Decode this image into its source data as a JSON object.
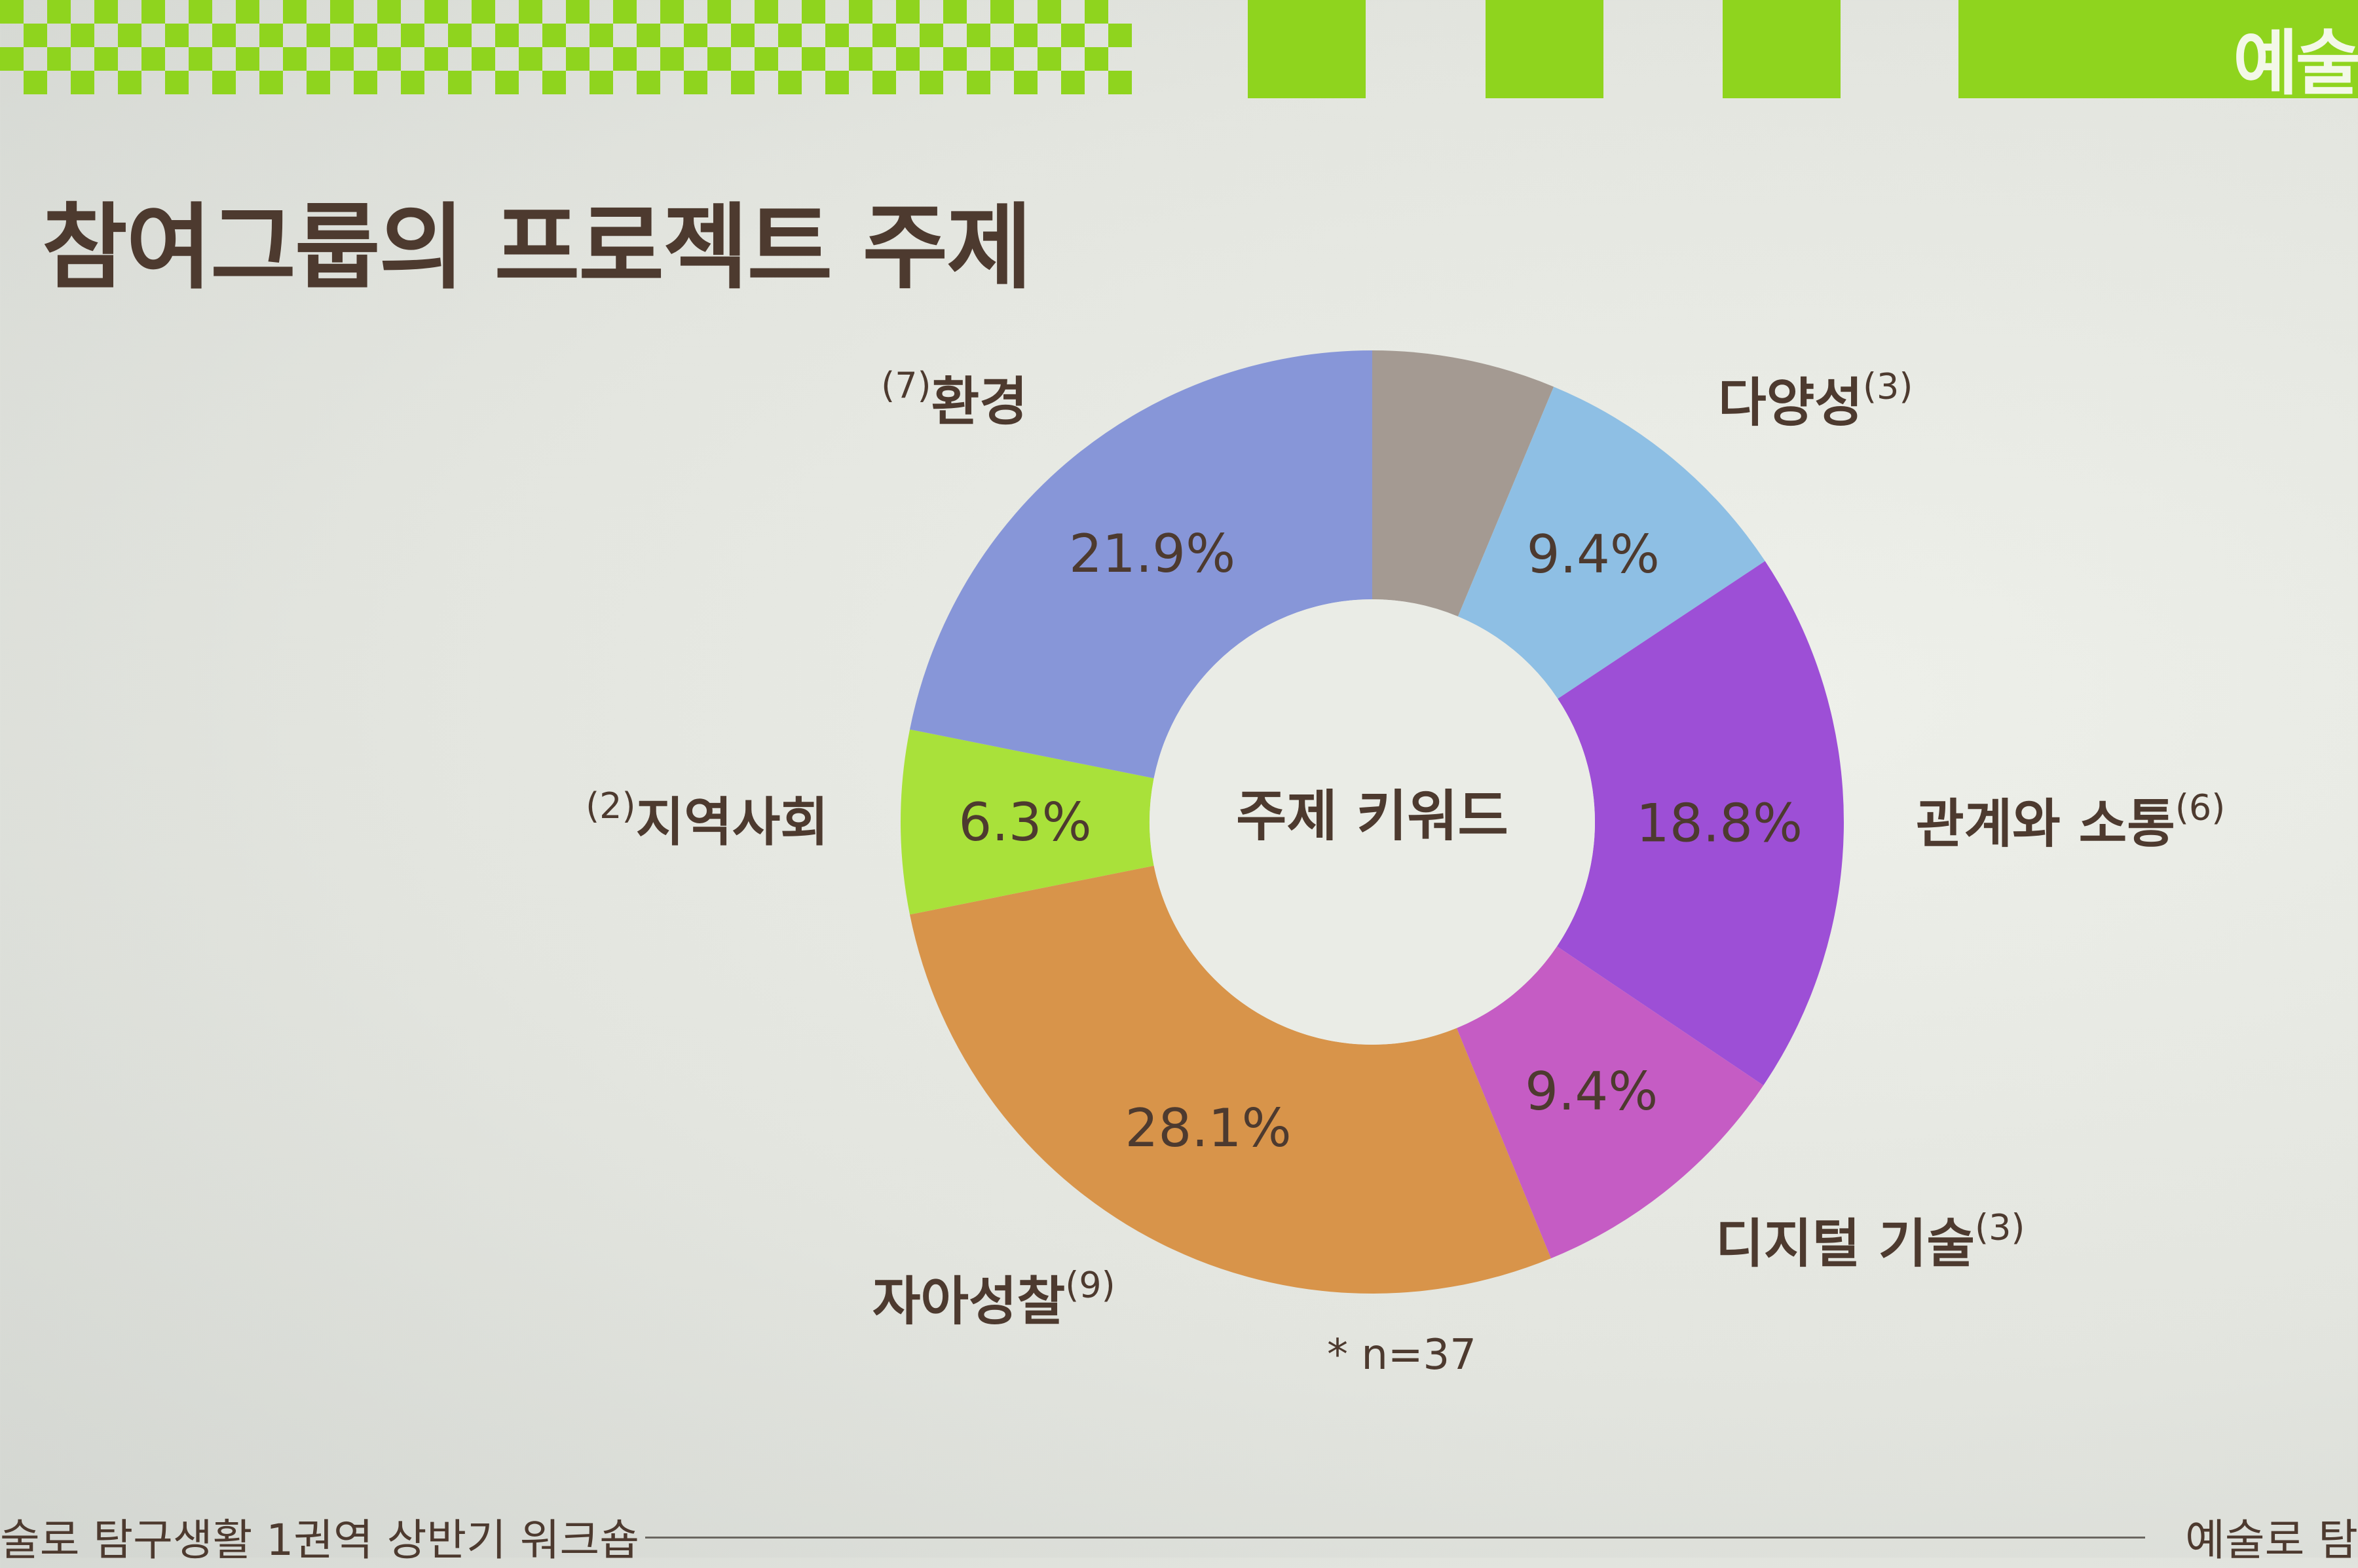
{
  "slide": {
    "title": "참여그룹의 프로젝트 주제",
    "corner_label": "예술",
    "footer_left": "술로 탐구생활 1권역 상반기 워크숍",
    "footer_right": "예술로 탐"
  },
  "colors": {
    "header_green": "#8fd41e",
    "title_brown": "#4d3a2f"
  },
  "chart_data": {
    "type": "pie",
    "donut": true,
    "center_label": "주제 키워드",
    "note": "* n=37",
    "slices": [
      {
        "label": "",
        "count": "",
        "value": 6.3,
        "percent_label": "",
        "color": "#a49a92"
      },
      {
        "label": "다양성",
        "count": "(3)",
        "value": 9.4,
        "percent_label": "9.4%",
        "color": "#8ebfe4"
      },
      {
        "label": "관계와 소통",
        "count": "(6)",
        "value": 18.8,
        "percent_label": "18.8%",
        "color": "#9d4fd6"
      },
      {
        "label": "디지털 기술",
        "count": "(3)",
        "value": 9.4,
        "percent_label": "9.4%",
        "color": "#c55cc4"
      },
      {
        "label": "자아성찰",
        "count": "(9)",
        "value": 28.1,
        "percent_label": "28.1%",
        "color": "#d8944a"
      },
      {
        "label": "지역사회",
        "count": "(2)",
        "value": 6.3,
        "percent_label": "6.3%",
        "color": "#a9e13a"
      },
      {
        "label": "환경",
        "count": "(7)",
        "value": 21.9,
        "percent_label": "21.9%",
        "color": "#8796d8"
      }
    ]
  }
}
